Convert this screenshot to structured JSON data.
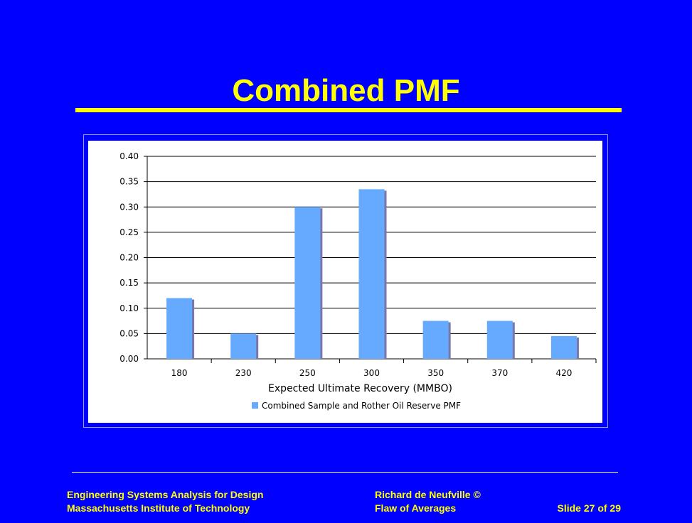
{
  "slide": {
    "title": "Combined PMF",
    "footer": {
      "left_line1": "Engineering Systems Analysis for Design",
      "left_line2": "Massachusetts Institute of Technology",
      "mid_line1": "Richard de Neufville ©",
      "mid_line2": "Flaw of Averages",
      "slide_number": "Slide 27 of 29"
    }
  },
  "colors": {
    "background": "#0000ff",
    "title": "#ffff00",
    "bar": "#66aaff",
    "bar_shadow": "#7777aa"
  },
  "chart_data": {
    "type": "bar",
    "categories": [
      "180",
      "230",
      "250",
      "300",
      "350",
      "370",
      "420"
    ],
    "series": [
      {
        "name": "Combined Sample and Rother Oil Reserve PMF",
        "values": [
          0.12,
          0.05,
          0.3,
          0.335,
          0.075,
          0.075,
          0.045
        ]
      }
    ],
    "xlabel": "Expected Ultimate Recovery (MMBO)",
    "ylabel": "",
    "ylim": [
      0,
      0.4
    ],
    "yticks": [
      "0.00",
      "0.05",
      "0.10",
      "0.15",
      "0.20",
      "0.25",
      "0.30",
      "0.35",
      "0.40"
    ],
    "grid": true,
    "legend_position": "bottom"
  }
}
